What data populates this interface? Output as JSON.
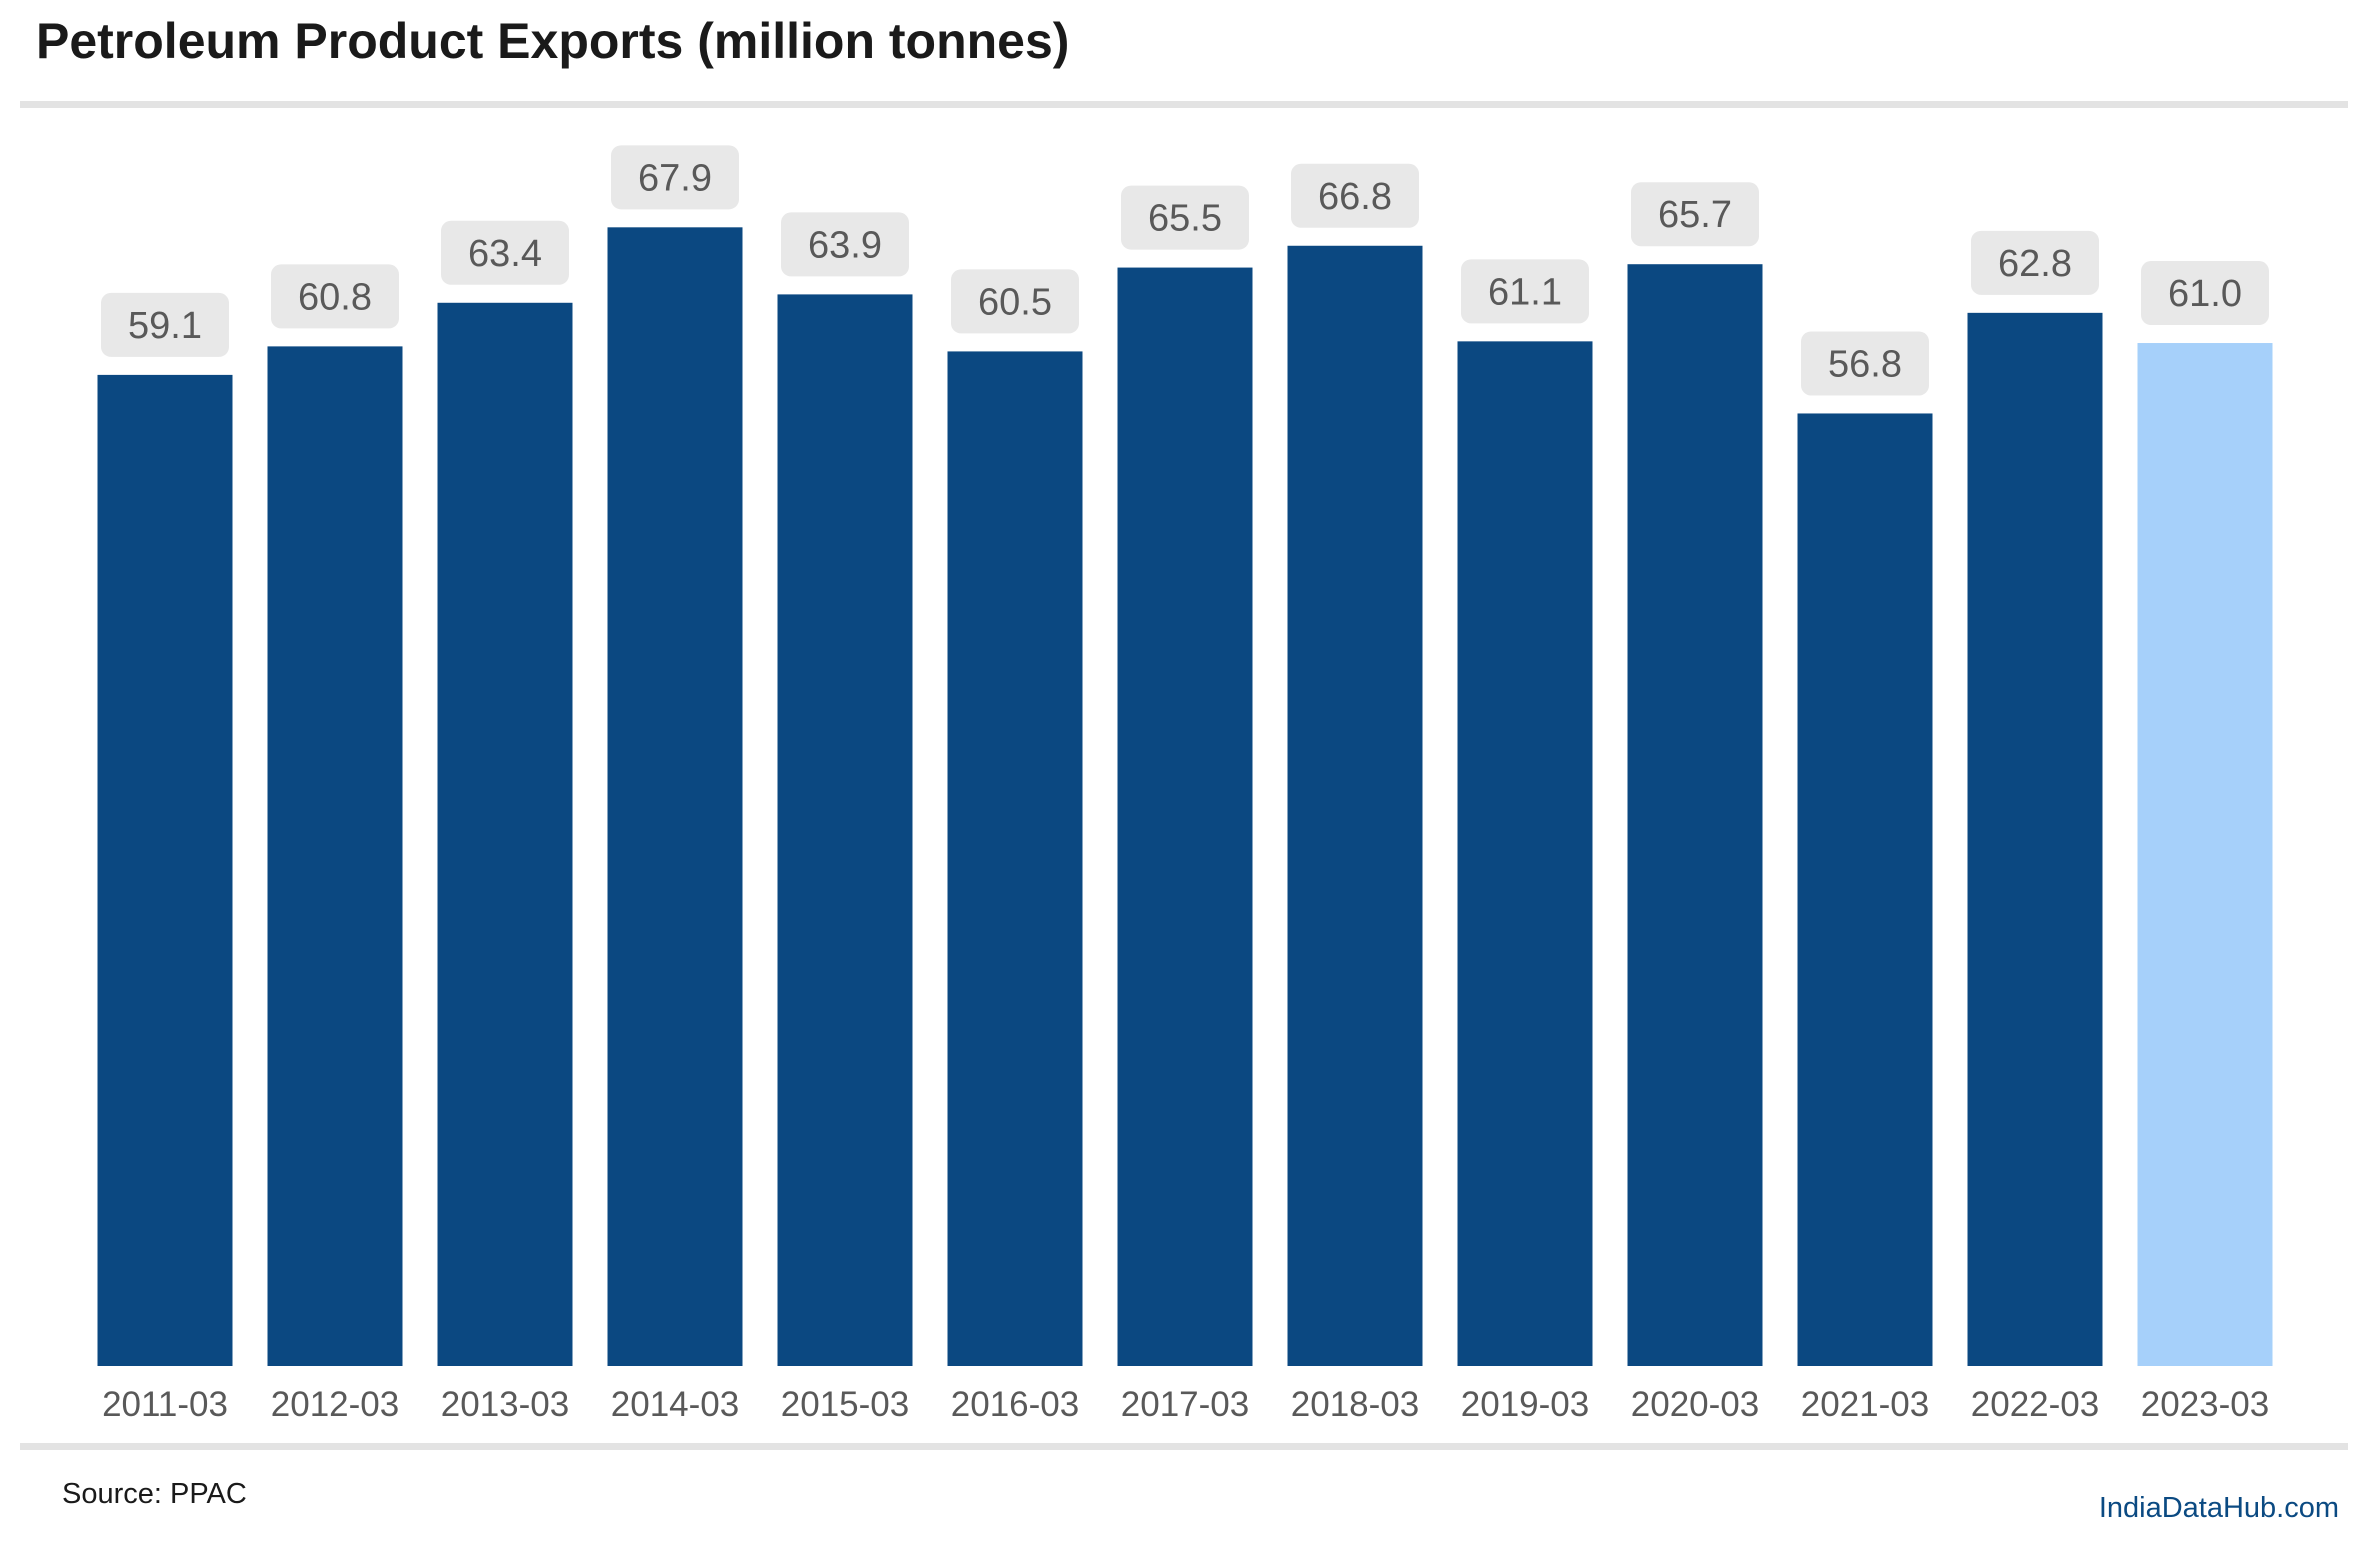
{
  "footer": {
    "source": "Source: PPAC",
    "brand": "IndiaDataHub.com"
  },
  "colors": {
    "bar": "#0b4881",
    "highlight_bar": "#a6d0fa",
    "label_box": "#e8e8e8",
    "label_text": "#595959",
    "tick_text": "#595959",
    "rule": "#e3e3e3"
  },
  "chart_data": {
    "type": "bar",
    "title": "Petroleum Product Exports (million tonnes)",
    "xlabel": "",
    "ylabel": "",
    "ylim": [
      0,
      80
    ],
    "grid": false,
    "legend": "none",
    "categories": [
      "2011-03",
      "2012-03",
      "2013-03",
      "2014-03",
      "2015-03",
      "2016-03",
      "2017-03",
      "2018-03",
      "2019-03",
      "2020-03",
      "2021-03",
      "2022-03",
      "2023-03"
    ],
    "values": [
      59.1,
      60.8,
      63.4,
      67.9,
      63.9,
      60.5,
      65.5,
      66.8,
      61.1,
      65.7,
      56.8,
      62.8,
      61.0
    ],
    "data_labels": [
      "59.1",
      "60.8",
      "63.4",
      "67.9",
      "63.9",
      "60.5",
      "65.5",
      "66.8",
      "61.1",
      "65.7",
      "56.8",
      "62.8",
      "61.0"
    ],
    "highlight_category": "2023-03"
  }
}
